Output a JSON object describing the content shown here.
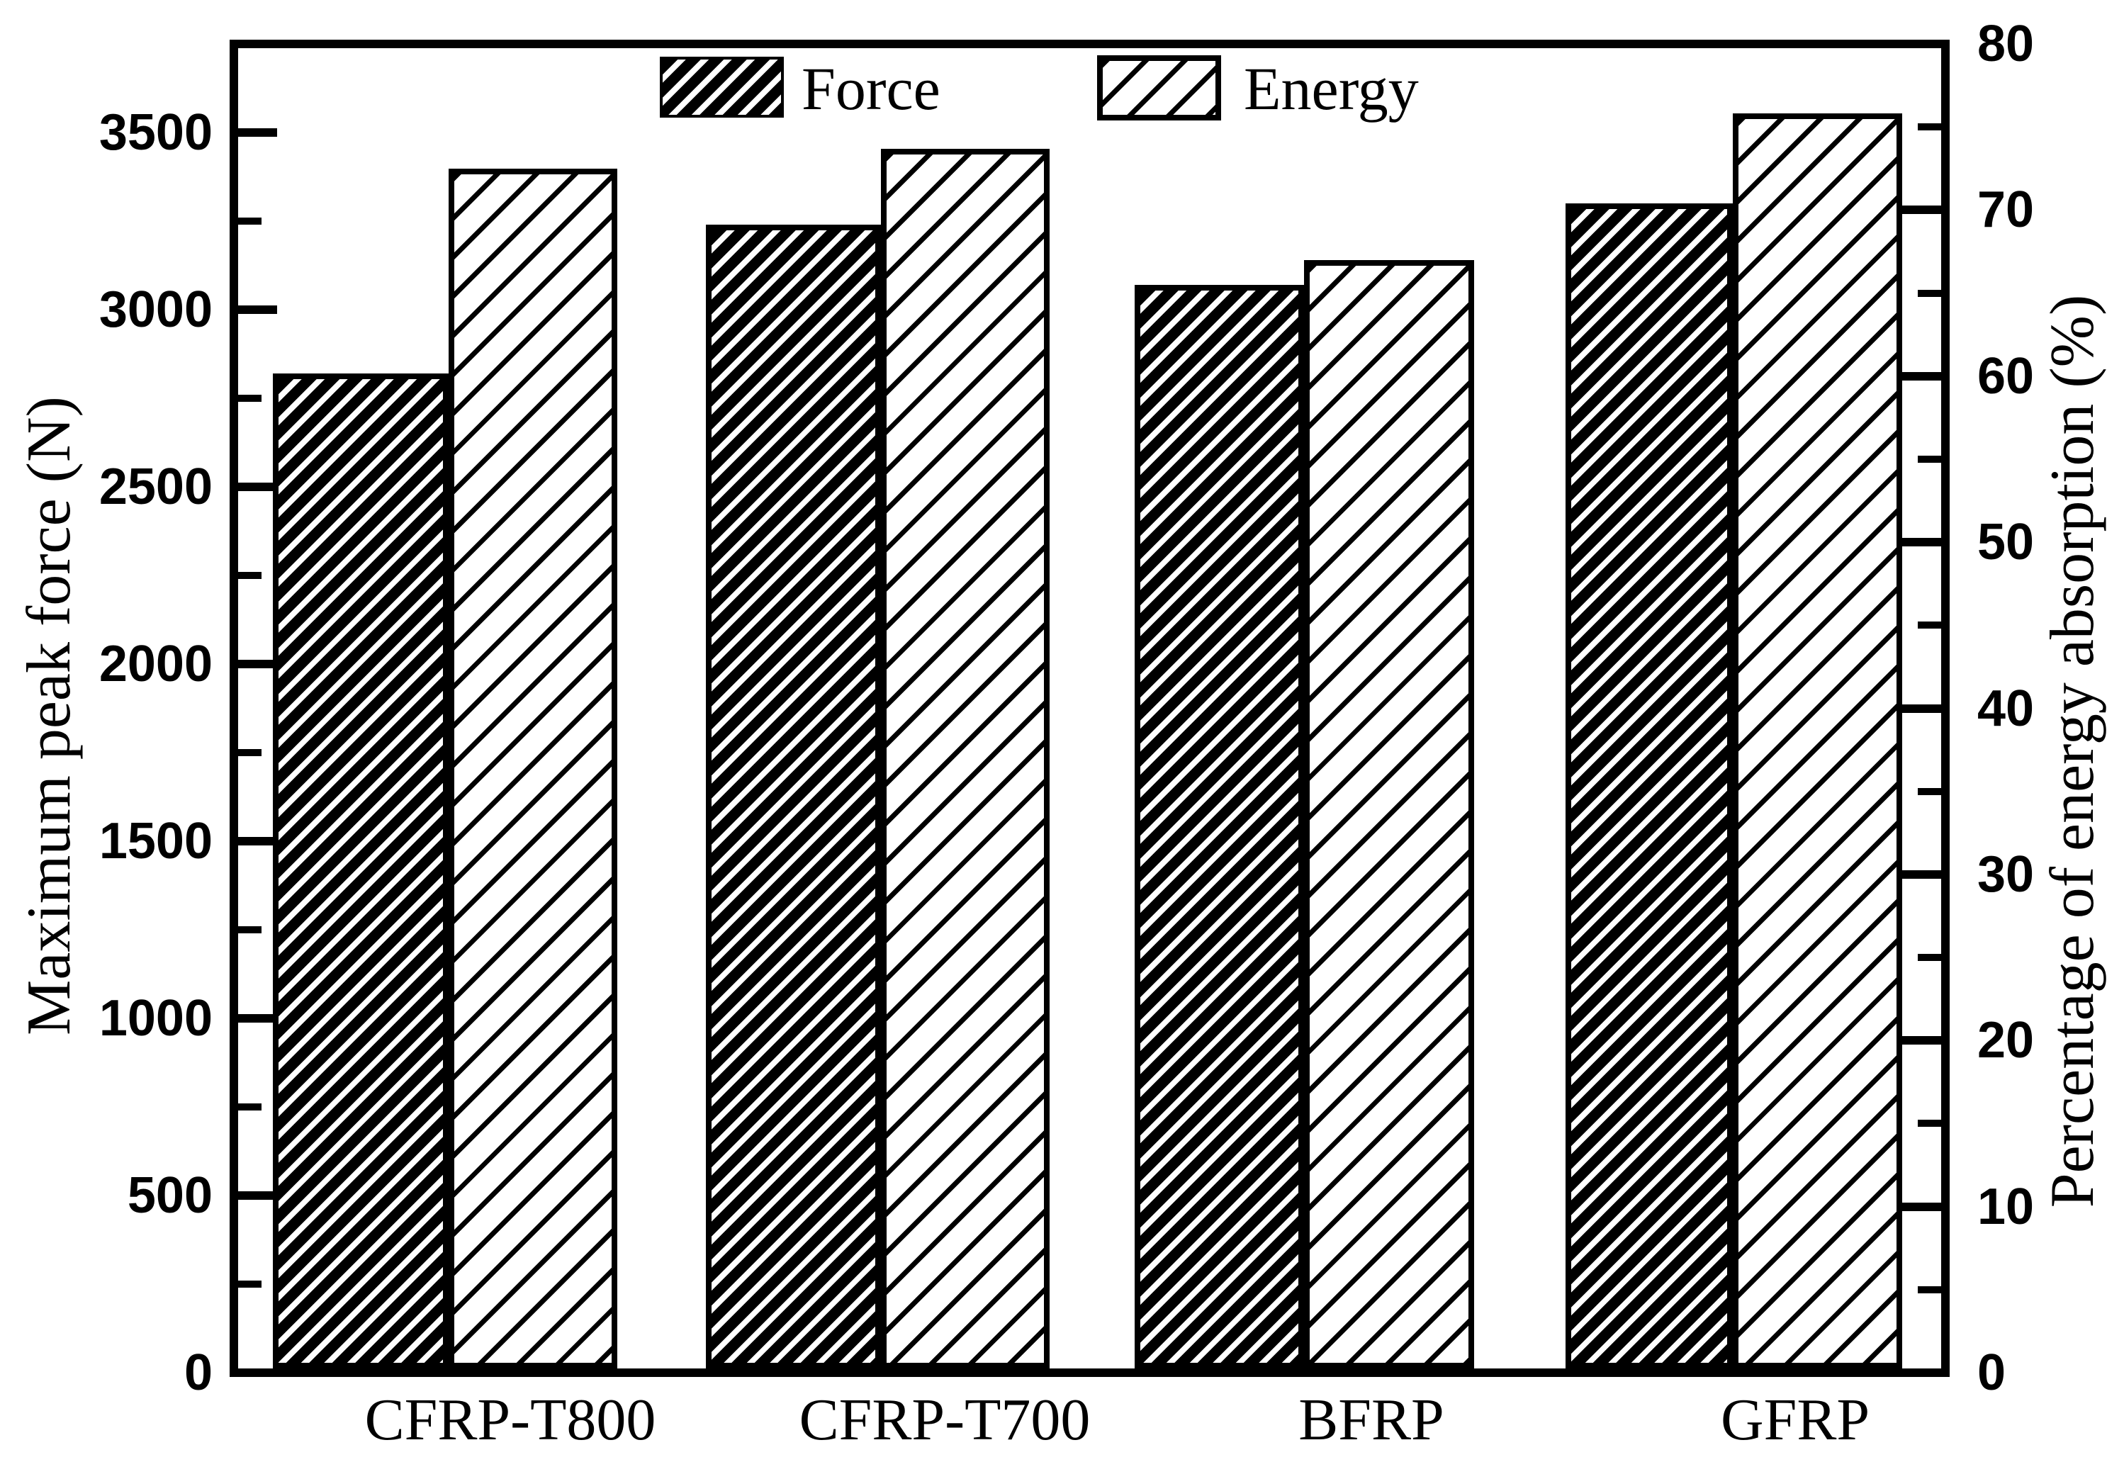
{
  "chart_data": {
    "type": "bar",
    "title": "",
    "categories": [
      "CFRP-T800",
      "CFRP-T700",
      "BFRP",
      "GFRP"
    ],
    "series": [
      {
        "name": "Force",
        "axis": "left",
        "unit": "N",
        "pattern": "dense-diagonal-hatch",
        "values": [
          2820,
          3240,
          3070,
          3300
        ]
      },
      {
        "name": "Energy",
        "axis": "right",
        "unit": "%",
        "pattern": "sparse-diagonal-hatch",
        "values": [
          72.5,
          73.7,
          67.0,
          75.8
        ]
      }
    ],
    "left_axis": {
      "label": "Maximum peak force (N)",
      "min": 0,
      "max_at_frame_top": 3750,
      "major_tick_step": 500,
      "minor_tick_step": 250,
      "tick_labels": [
        "0",
        "500",
        "1000",
        "1500",
        "2000",
        "2500",
        "3000",
        "3500"
      ]
    },
    "right_axis": {
      "label": "Percentage of energy absorption (%)",
      "min": 0,
      "max_at_frame_top": 80,
      "major_tick_step": 10,
      "minor_tick_step": 5,
      "tick_labels": [
        "0",
        "10",
        "20",
        "30",
        "40",
        "50",
        "60",
        "70",
        "80"
      ]
    },
    "legend": {
      "position": "top-inside",
      "entries": [
        "Force",
        "Energy"
      ]
    },
    "grid": false,
    "colors": {
      "foreground": "#000000",
      "background": "#ffffff"
    }
  }
}
